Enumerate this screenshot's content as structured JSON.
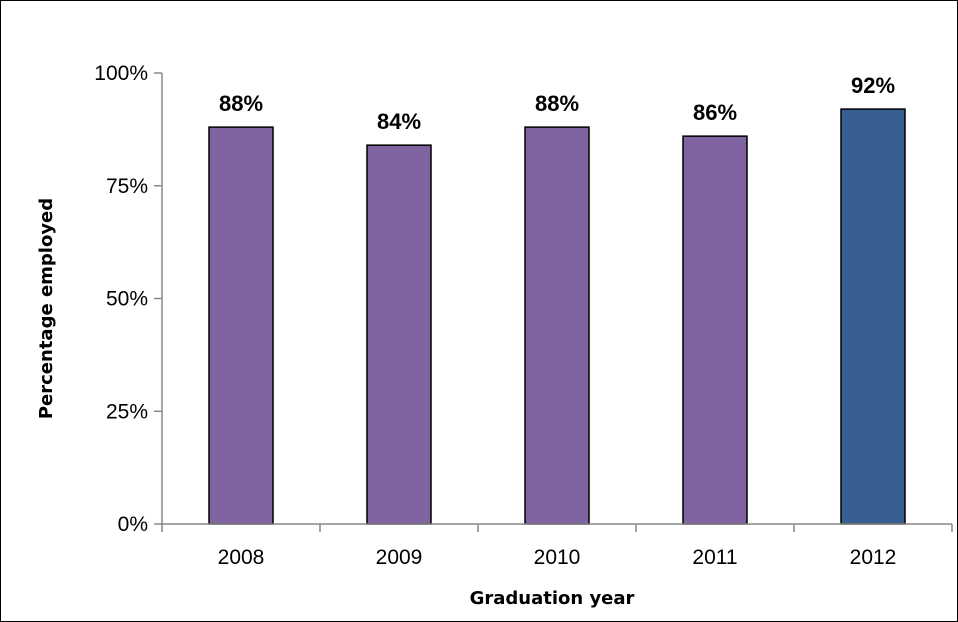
{
  "chart_data": {
    "type": "bar",
    "categories": [
      "2008",
      "2009",
      "2010",
      "2011",
      "2012"
    ],
    "values": [
      88,
      84,
      88,
      86,
      92
    ],
    "data_labels": [
      "88%",
      "84%",
      "88%",
      "86%",
      "92%"
    ],
    "title": "",
    "xlabel": "Graduation year",
    "ylabel": "Percentage employed",
    "ylim": [
      0,
      100
    ],
    "yticks": [
      0,
      25,
      50,
      75,
      100
    ],
    "ytick_labels": [
      "0%",
      "25%",
      "50%",
      "75%",
      "100%"
    ],
    "grid": false,
    "bar_colors": [
      "#8064a2",
      "#8064a2",
      "#8064a2",
      "#8064a2",
      "#375f91"
    ],
    "bar_outline": "#000000"
  }
}
